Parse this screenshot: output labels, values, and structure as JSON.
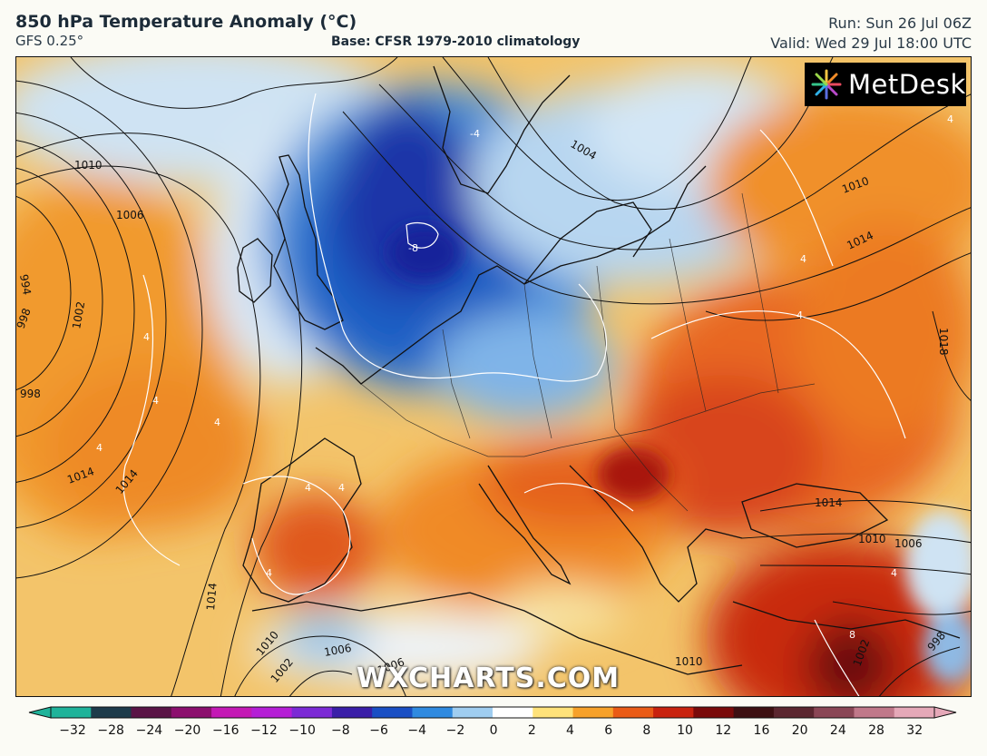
{
  "header": {
    "title": "850 hPa Temperature Anomaly (°C)",
    "model": "GFS 0.25°",
    "base": "Base: CFSR 1979-2010 climatology",
    "run": "Run: Sun 26 Jul 06Z",
    "valid": "Valid: Wed 29 Jul 18:00 UTC"
  },
  "logo": {
    "text": "MetDesk"
  },
  "watermark": "WXCHARTS.COM",
  "colorbar": {
    "ticks": [
      "−32",
      "−28",
      "−24",
      "−20",
      "−16",
      "−12",
      "−10",
      "−8",
      "−6",
      "−4",
      "−2",
      "0",
      "2",
      "4",
      "6",
      "8",
      "10",
      "12",
      "16",
      "20",
      "24",
      "28",
      "32"
    ],
    "colors": [
      "#1fb39a",
      "#1d3b4a",
      "#5a1446",
      "#8c0f6e",
      "#c419b5",
      "#b51fd6",
      "#7c2bd6",
      "#3a1fa8",
      "#1a4fc4",
      "#2f8ae0",
      "#9fcdf0",
      "#ffffff",
      "#ffe27a",
      "#f7a12a",
      "#ea5b16",
      "#c8220e",
      "#7a0a0a",
      "#3d0f12",
      "#5b2630",
      "#8a4656",
      "#c0788a",
      "#e5a8b8"
    ]
  },
  "isobar_labels": [
    "1010",
    "1006",
    "994",
    "998",
    "1002",
    "998",
    "1014",
    "1014",
    "1014",
    "1010",
    "1006",
    "1002",
    "1006",
    "1010",
    "1014",
    "1018",
    "1010",
    "1014",
    "1010",
    "1006",
    "998",
    "1002",
    "1004"
  ],
  "anomaly_labels": [
    "-8",
    "4",
    "4",
    "4",
    "4",
    "4",
    "4",
    "4",
    "4",
    "4",
    "4",
    "4",
    "-4",
    "8"
  ]
}
